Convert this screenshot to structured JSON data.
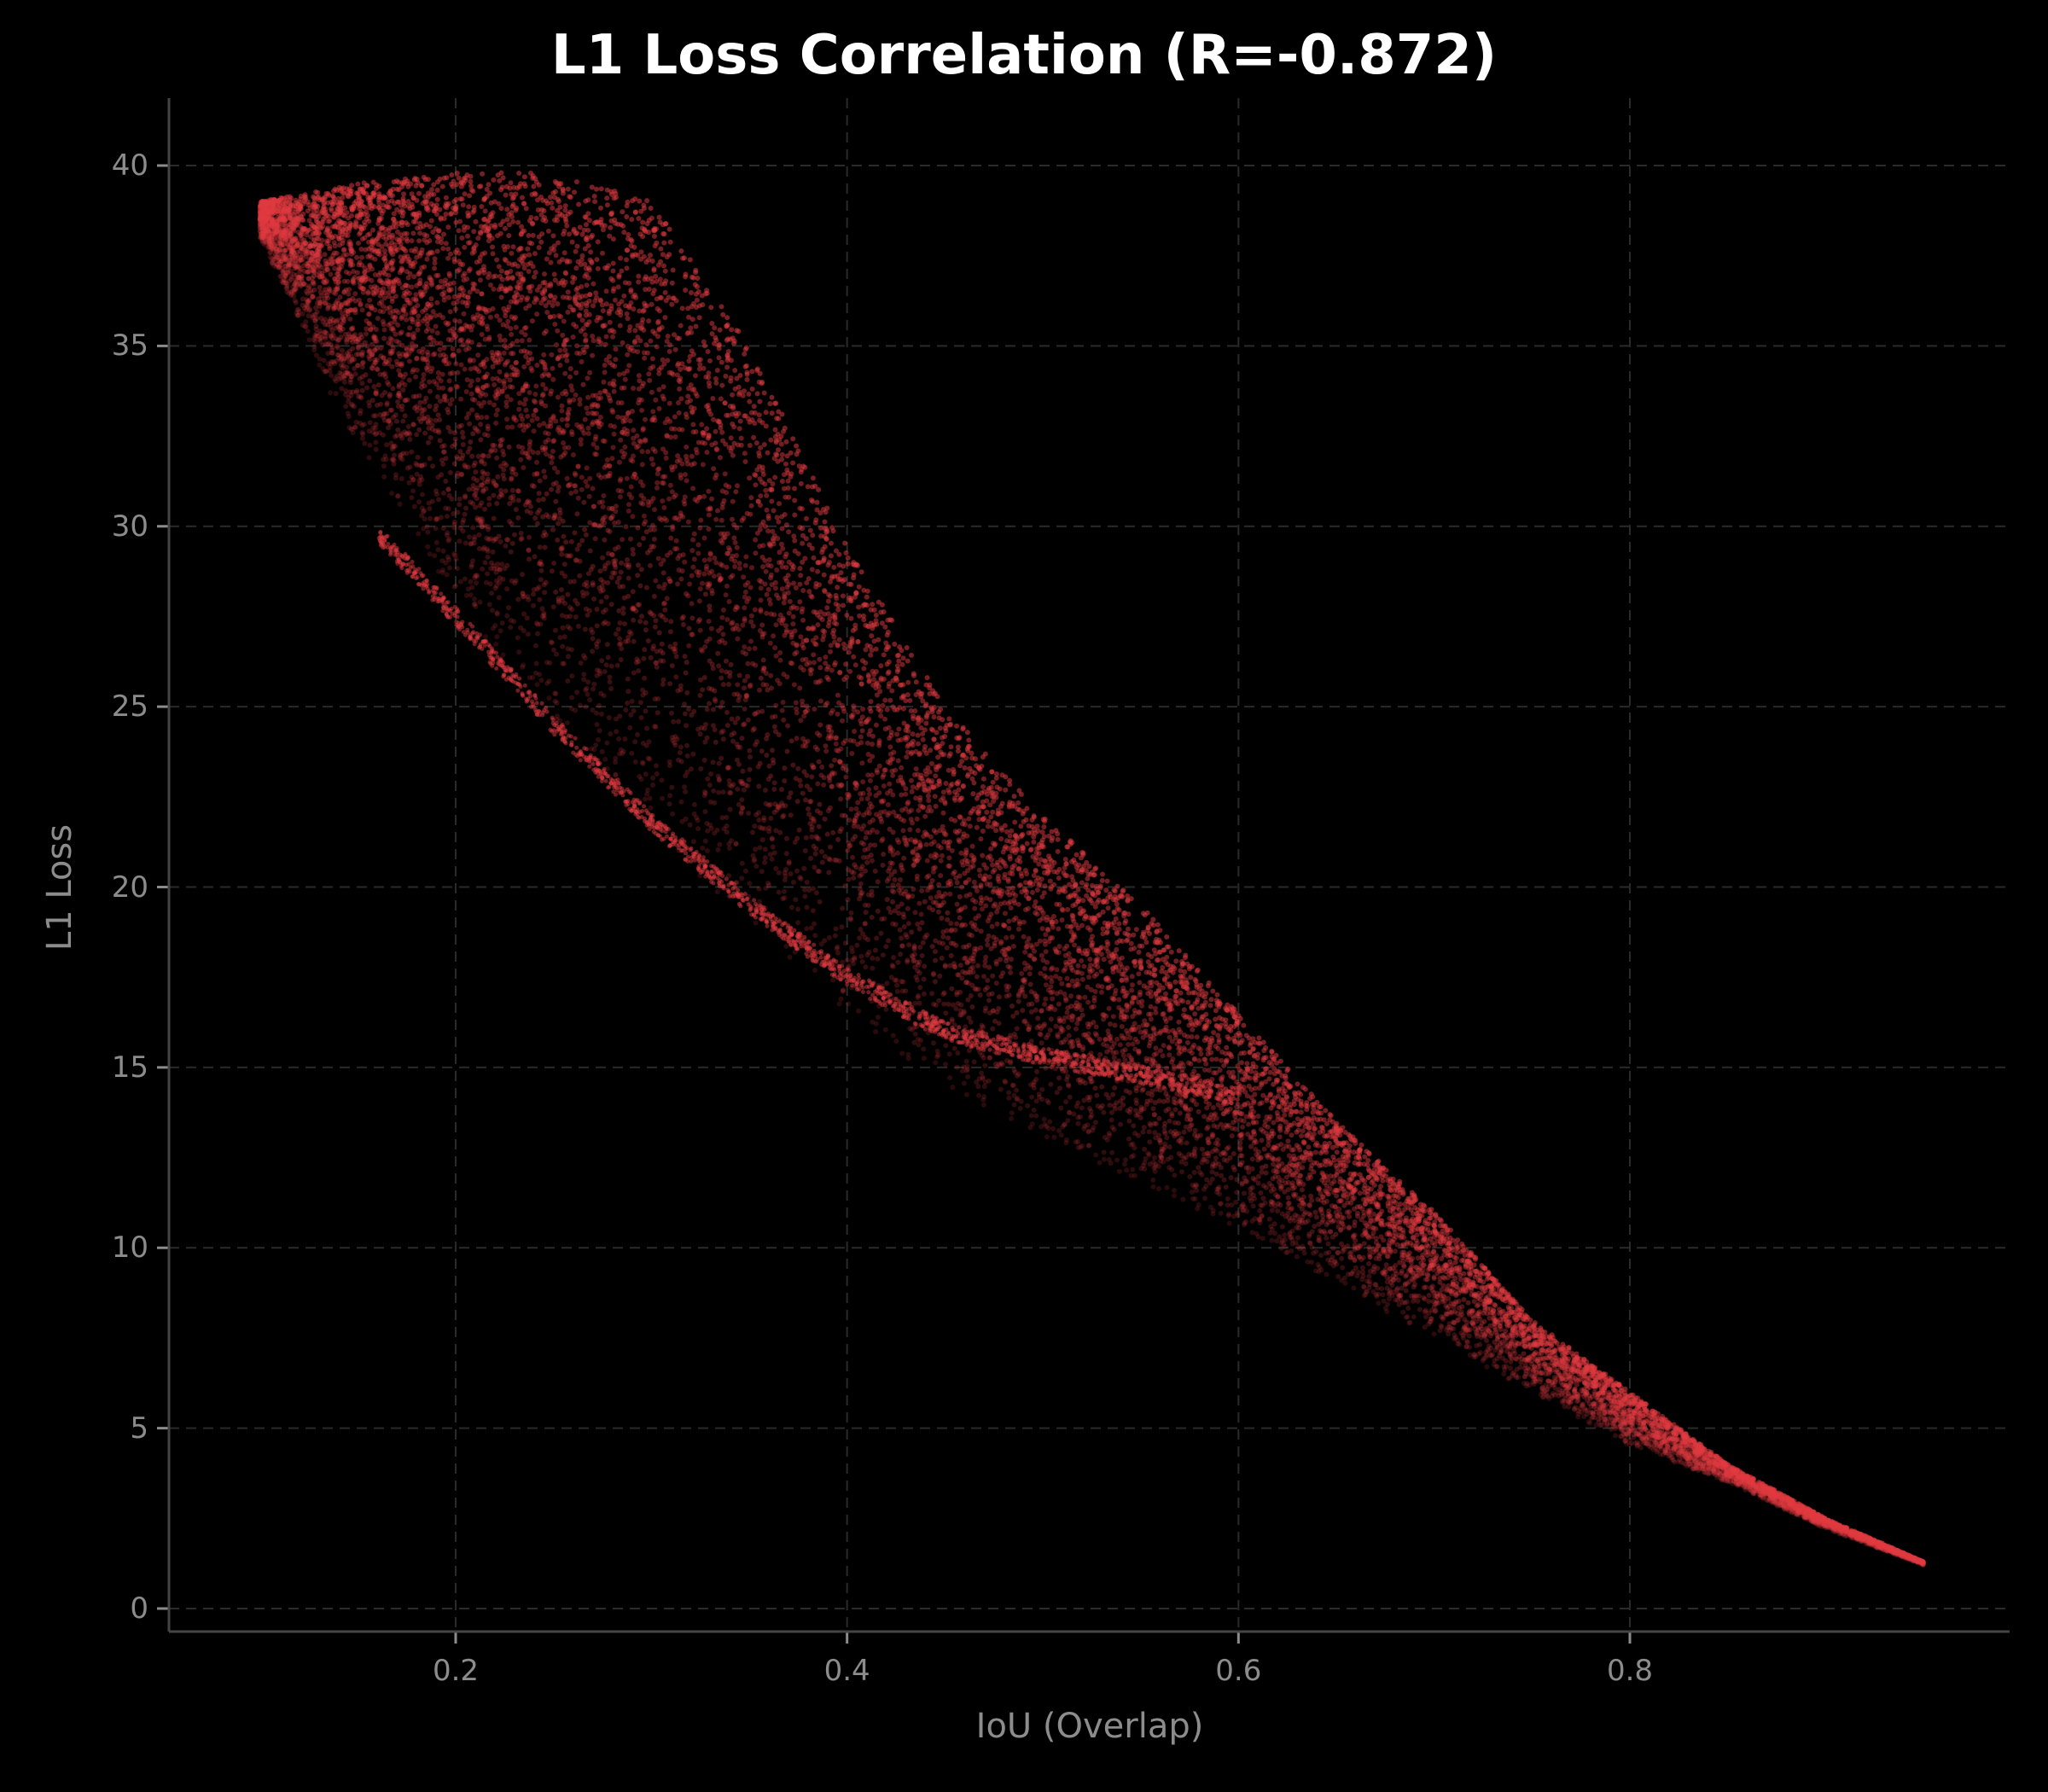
{
  "chart": {
    "title": "L1 Loss Correlation (R=-0.872)",
    "xlabel": "IoU (Overlap)",
    "ylabel": "L1 Loss",
    "xticks": [
      "0.2",
      "0.4",
      "0.6",
      "0.8"
    ],
    "yticks": [
      "0",
      "5",
      "10",
      "15",
      "20",
      "25",
      "30",
      "35",
      "40"
    ]
  },
  "colors": {
    "background": "#000000",
    "points": "#e03a40",
    "grid": "#2a2a2a",
    "axis": "#444444",
    "text": "#8c8c8c",
    "title": "#ffffff"
  },
  "chart_data": {
    "type": "scatter",
    "title": "L1 Loss Correlation (R=-0.872)",
    "xlabel": "IoU (Overlap)",
    "ylabel": "L1 Loss",
    "correlation_R": -0.872,
    "xlim": [
      0.05,
      0.99
    ],
    "ylim": [
      -0.7,
      42
    ],
    "xticks": [
      0.2,
      0.4,
      0.6,
      0.8
    ],
    "yticks": [
      0,
      5,
      10,
      15,
      20,
      25,
      30,
      35,
      40
    ],
    "grid": true,
    "grid_style": "dashed",
    "legend": null,
    "point_color": "#e03a40",
    "description": "Dense cloud of many thousands of semi-transparent red points forming a curved negatively-correlated band; a thin distinct lower-boundary curve runs from about (0.16, 30) to (0.6, 14); upper boundary edge from about (0.38, 30) down to (0.95, 1.3).",
    "band_envelope": {
      "x": [
        0.1,
        0.15,
        0.2,
        0.25,
        0.3,
        0.35,
        0.4,
        0.45,
        0.5,
        0.55,
        0.6,
        0.65,
        0.7,
        0.75,
        0.8,
        0.85,
        0.9,
        0.95
      ],
      "upper": [
        39.0,
        39.5,
        39.8,
        39.8,
        39.0,
        35.0,
        29.5,
        25.0,
        22.0,
        19.5,
        16.5,
        13.5,
        11.0,
        8.0,
        6.0,
        4.0,
        2.5,
        1.3
      ],
      "lower": [
        38.0,
        32.0,
        28.0,
        24.5,
        21.5,
        19.0,
        16.5,
        14.5,
        13.0,
        11.8,
        10.5,
        9.0,
        7.5,
        6.0,
        4.5,
        3.5,
        2.2,
        1.2
      ]
    },
    "lower_edge_curve": {
      "x": [
        0.16,
        0.2,
        0.25,
        0.3,
        0.35,
        0.4,
        0.45,
        0.5,
        0.55,
        0.6
      ],
      "y": [
        29.8,
        27.5,
        24.5,
        21.8,
        19.5,
        17.5,
        16.0,
        15.3,
        14.8,
        14.2
      ]
    }
  }
}
